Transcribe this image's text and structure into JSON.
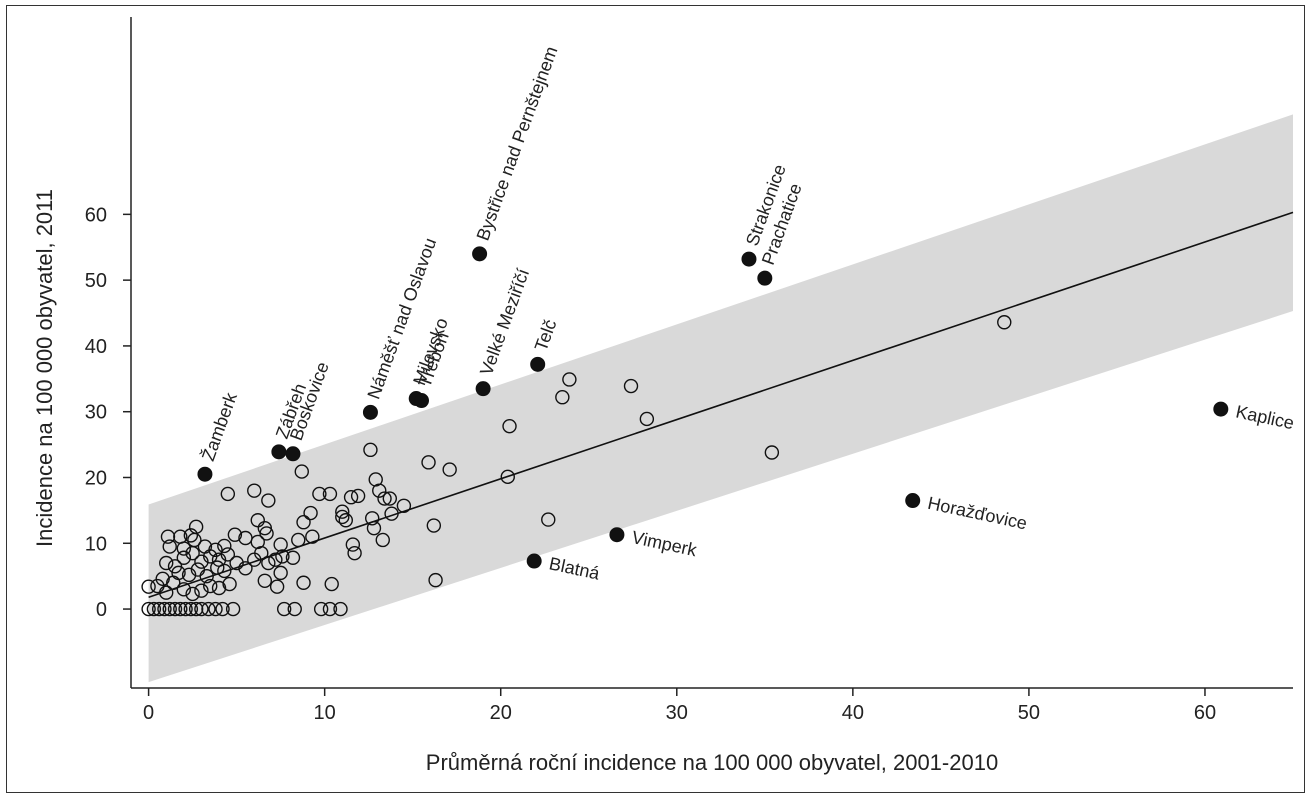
{
  "chart_data": {
    "type": "scatter",
    "title": "",
    "xlabel": "Průměrná roční incidence na 100 000 obyvatel, 2001-2010",
    "ylabel": "Incidence na 100 000 obyvatel, 2011",
    "xlim": [
      -1,
      65
    ],
    "ylim": [
      -12,
      90
    ],
    "xticks": [
      0,
      10,
      20,
      30,
      40,
      50,
      60
    ],
    "yticks": [
      0,
      10,
      20,
      30,
      40,
      50,
      60
    ],
    "grid": false,
    "fit_line": {
      "x": [
        0,
        65
      ],
      "y": [
        1.8,
        60.3
      ]
    },
    "prediction_band": {
      "x": [
        0,
        65
      ],
      "upper": [
        15.9,
        75.2
      ],
      "lower": [
        -11.1,
        45.3
      ],
      "color": "#d9d9d9"
    },
    "series": [
      {
        "marker": "open-circle",
        "points": [
          [
            0,
            0
          ],
          [
            0.3,
            0
          ],
          [
            0.6,
            0
          ],
          [
            0.9,
            0
          ],
          [
            1.2,
            0
          ],
          [
            1.5,
            0
          ],
          [
            1.8,
            0
          ],
          [
            2.1,
            0
          ],
          [
            2.4,
            0
          ],
          [
            2.7,
            0
          ],
          [
            3,
            0
          ],
          [
            3.4,
            0
          ],
          [
            3.8,
            0
          ],
          [
            4.2,
            0
          ],
          [
            4.8,
            0
          ],
          [
            7.7,
            0
          ],
          [
            8.3,
            0
          ],
          [
            9.8,
            0
          ],
          [
            10.3,
            0
          ],
          [
            10.9,
            0
          ],
          [
            0,
            3.4
          ],
          [
            0.5,
            3.5
          ],
          [
            1,
            2.5
          ],
          [
            1.4,
            4
          ],
          [
            2,
            3
          ],
          [
            2.5,
            2.3
          ],
          [
            3,
            2.8
          ],
          [
            3.5,
            3.5
          ],
          [
            4,
            3.2
          ],
          [
            4.6,
            3.8
          ],
          [
            0.8,
            4.6
          ],
          [
            1.7,
            5.5
          ],
          [
            2.3,
            5.2
          ],
          [
            2.8,
            6
          ],
          [
            3.3,
            5
          ],
          [
            3.9,
            6.3
          ],
          [
            4.3,
            5.8
          ],
          [
            1,
            7
          ],
          [
            1.5,
            6.5
          ],
          [
            2,
            7.8
          ],
          [
            2.5,
            8.5
          ],
          [
            3,
            7.2
          ],
          [
            3.5,
            8
          ],
          [
            4,
            7.5
          ],
          [
            4.5,
            8.3
          ],
          [
            5,
            7
          ],
          [
            1.2,
            9.5
          ],
          [
            2,
            9.2
          ],
          [
            2.6,
            10.5
          ],
          [
            3.2,
            9.5
          ],
          [
            3.8,
            9
          ],
          [
            4.3,
            9.6
          ],
          [
            1.1,
            11
          ],
          [
            1.8,
            11
          ],
          [
            2.4,
            11.2
          ],
          [
            2.7,
            12.5
          ],
          [
            4.9,
            11.3
          ],
          [
            5.5,
            6.2
          ],
          [
            6,
            7.5
          ],
          [
            6.4,
            8.5
          ],
          [
            6.8,
            7
          ],
          [
            7.2,
            7.5
          ],
          [
            7.6,
            8
          ],
          [
            8.2,
            7.8
          ],
          [
            6.6,
            4.3
          ],
          [
            7.5,
            5.5
          ],
          [
            8.8,
            4
          ],
          [
            10.4,
            3.8
          ],
          [
            7.3,
            3.4
          ],
          [
            16.3,
            4.4
          ],
          [
            5.5,
            10.8
          ],
          [
            6.2,
            10.2
          ],
          [
            6.7,
            11.5
          ],
          [
            7.5,
            9.8
          ],
          [
            8.5,
            10.5
          ],
          [
            9.3,
            11
          ],
          [
            6.2,
            13.5
          ],
          [
            6.6,
            12.3
          ],
          [
            8.8,
            13.2
          ],
          [
            9.2,
            14.6
          ],
          [
            11,
            14
          ],
          [
            11.2,
            13.5
          ],
          [
            11,
            14.8
          ],
          [
            12.7,
            13.8
          ],
          [
            12.8,
            12.3
          ],
          [
            13.8,
            14.5
          ],
          [
            14.5,
            15.7
          ],
          [
            11.6,
            9.8
          ],
          [
            11.7,
            8.5
          ],
          [
            13.3,
            10.5
          ],
          [
            4.5,
            17.5
          ],
          [
            6,
            18
          ],
          [
            6.8,
            16.5
          ],
          [
            8.7,
            20.9
          ],
          [
            9.7,
            17.5
          ],
          [
            10.3,
            17.5
          ],
          [
            11.5,
            17
          ],
          [
            11.9,
            17.2
          ],
          [
            12.6,
            24.2
          ],
          [
            12.9,
            19.7
          ],
          [
            13.1,
            18
          ],
          [
            13.4,
            16.8
          ],
          [
            13.7,
            16.8
          ],
          [
            15.9,
            22.3
          ],
          [
            17.1,
            21.2
          ],
          [
            16.2,
            12.7
          ],
          [
            20.5,
            27.8
          ],
          [
            20.4,
            20.1
          ],
          [
            22.7,
            13.6
          ],
          [
            23.5,
            32.2
          ],
          [
            23.9,
            34.9
          ],
          [
            27.4,
            33.9
          ],
          [
            28.3,
            28.9
          ],
          [
            35.4,
            23.8
          ],
          [
            48.6,
            43.6
          ]
        ]
      },
      {
        "marker": "filled-circle",
        "points": [
          {
            "x": 3.2,
            "y": 20.5,
            "label": "Žamberk",
            "pos": "rot"
          },
          {
            "x": 7.4,
            "y": 23.9,
            "label": "Zábřeh",
            "pos": "rot"
          },
          {
            "x": 8.2,
            "y": 23.6,
            "label": "Boskovice",
            "pos": "rot"
          },
          {
            "x": 12.6,
            "y": 29.9,
            "label": "Náměšť nad Oslavou",
            "pos": "rot"
          },
          {
            "x": 15.2,
            "y": 32,
            "label": "Milevsko",
            "pos": "rot"
          },
          {
            "x": 15.5,
            "y": 31.7,
            "label": "Třeboň",
            "pos": "rot"
          },
          {
            "x": 18.8,
            "y": 54,
            "label": "Bystřice nad Pernštejnem",
            "pos": "rot"
          },
          {
            "x": 19,
            "y": 33.5,
            "label": "Velké Meziříčí",
            "pos": "rot"
          },
          {
            "x": 22.1,
            "y": 37.2,
            "label": "Telč",
            "pos": "rot"
          },
          {
            "x": 34.1,
            "y": 53.2,
            "label": "Strakonice",
            "pos": "rot"
          },
          {
            "x": 35,
            "y": 50.3,
            "label": "Prachatice",
            "pos": "rot"
          },
          {
            "x": 21.9,
            "y": 7.3,
            "label": "Blatná",
            "pos": "below"
          },
          {
            "x": 26.6,
            "y": 11.3,
            "label": "Vimperk",
            "pos": "below"
          },
          {
            "x": 43.4,
            "y": 16.5,
            "label": "Horažďovice",
            "pos": "below"
          },
          {
            "x": 60.9,
            "y": 30.4,
            "label": "Kaplice",
            "pos": "below"
          }
        ]
      }
    ]
  }
}
